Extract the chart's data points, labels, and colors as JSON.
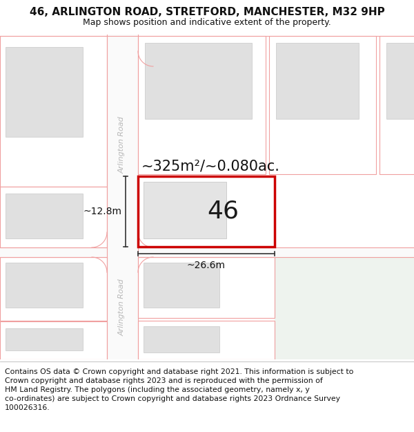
{
  "title_line1": "46, ARLINGTON ROAD, STRETFORD, MANCHESTER, M32 9HP",
  "title_line2": "Map shows position and indicative extent of the property.",
  "footer_text": "Contains OS data © Crown copyright and database right 2021. This information is subject to Crown copyright and database rights 2023 and is reproduced with the permission of HM Land Registry. The polygons (including the associated geometry, namely x, y co-ordinates) are subject to Crown copyright and database rights 2023 Ordnance Survey 100026316.",
  "area_label": "~325m²/~0.080ac.",
  "width_label": "~26.6m",
  "height_label": "~12.8m",
  "plot_number": "46",
  "bg_color": "#ffffff",
  "road_line_color": "#f0a0a0",
  "plot_outline_color": "#cc0000",
  "building_color": "#e0e0e0",
  "dim_line_color": "#333333",
  "green_color": "#eef3ee",
  "title_fontsize": 11,
  "subtitle_fontsize": 9,
  "footer_fontsize": 7.8,
  "area_fontsize": 15,
  "number_fontsize": 26,
  "dim_fontsize": 10,
  "road_label_fontsize": 8
}
